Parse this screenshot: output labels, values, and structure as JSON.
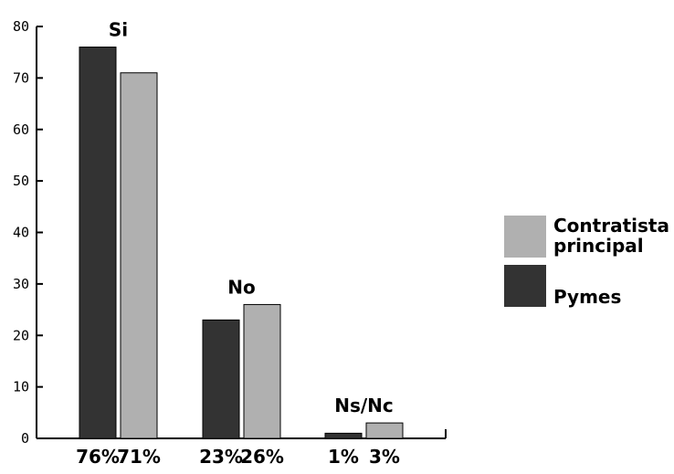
{
  "chart_data": {
    "type": "bar",
    "categories": [
      "Si",
      "No",
      "Ns/Nc"
    ],
    "series": [
      {
        "name": "Pymes",
        "values": [
          76,
          23,
          1
        ],
        "labels": [
          "76%",
          "23%",
          "1%"
        ],
        "color": "#333333"
      },
      {
        "name": "Contratista principal",
        "values": [
          71,
          26,
          3
        ],
        "labels": [
          "71%",
          "26%",
          "3%"
        ],
        "color": "#b0b0b0"
      }
    ],
    "ylim": [
      0,
      80
    ],
    "yticks": [
      0,
      10,
      20,
      30,
      40,
      50,
      60,
      70,
      80
    ],
    "legend_position": "right",
    "legend_entries": [
      {
        "name": "Contratista principal",
        "lines": [
          "Contratista",
          "principal"
        ],
        "color": "#b0b0b0"
      },
      {
        "name": "Pymes",
        "lines": [
          "Pymes"
        ],
        "color": "#333333"
      }
    ]
  }
}
